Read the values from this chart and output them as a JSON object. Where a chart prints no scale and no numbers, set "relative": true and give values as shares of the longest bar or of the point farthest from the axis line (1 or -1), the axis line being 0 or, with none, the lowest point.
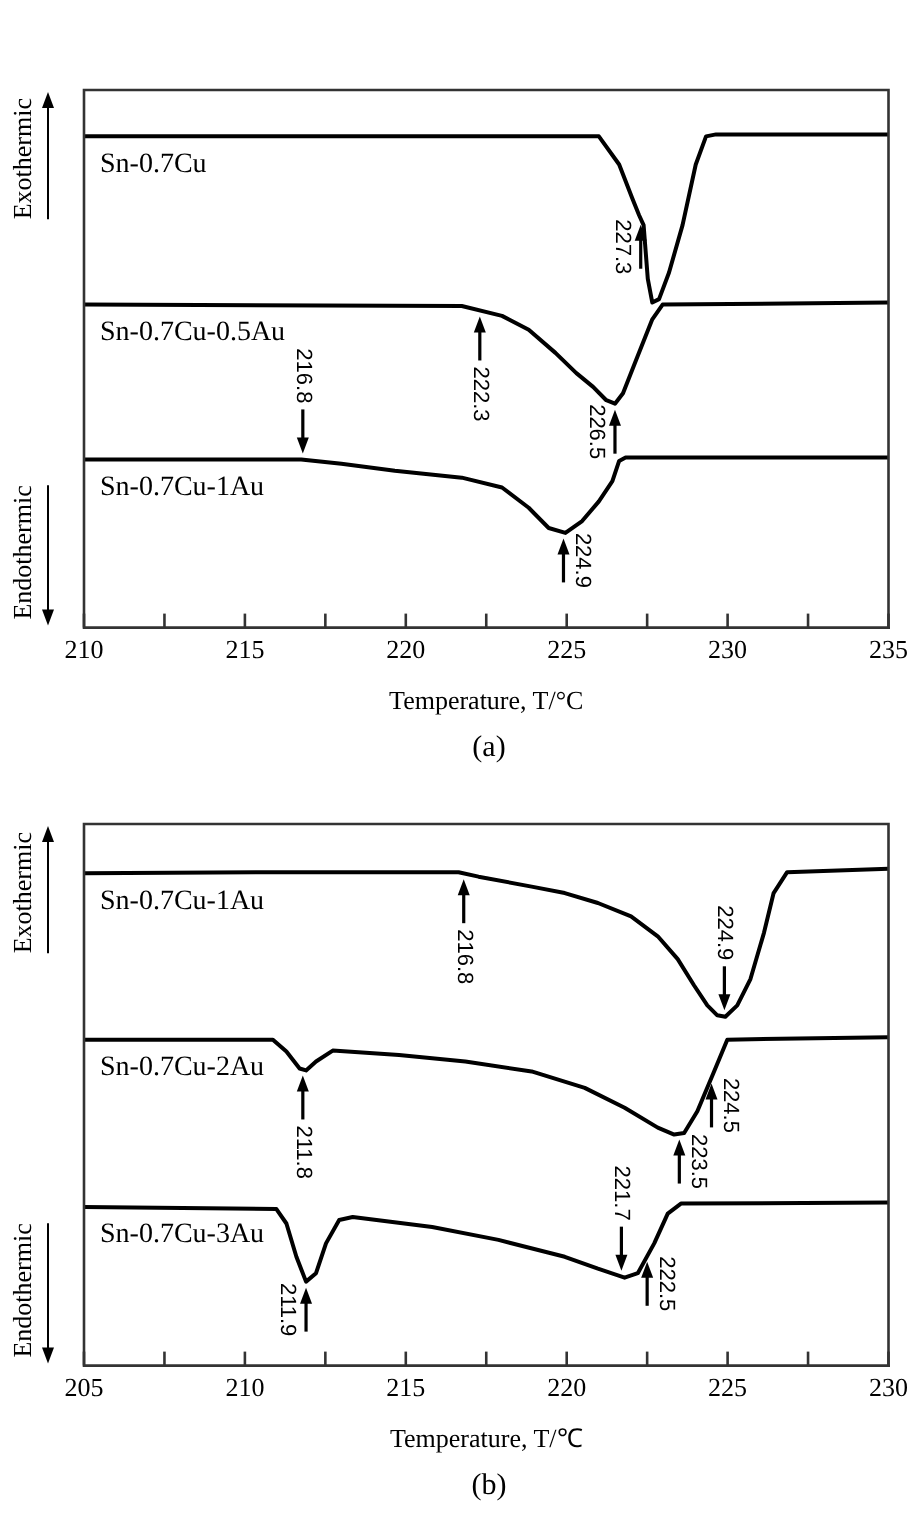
{
  "chart_data": [
    {
      "type": "line",
      "relative": true,
      "xlabel": "Temperature, T/°C",
      "subtitle": "(a)",
      "xlim": [
        210,
        235
      ],
      "xticks": [
        210,
        {
          "value": 212.5,
          "label": null
        },
        215,
        {
          "value": 217.5,
          "label": null
        },
        220,
        {
          "value": 222.5,
          "label": null
        },
        225,
        {
          "value": 227.5,
          "label": null
        },
        230,
        {
          "value": 232.5,
          "label": null
        },
        235
      ],
      "annotations": [
        "Exothermic",
        "Endothermic",
        {
          "text": "227.3",
          "x": 227.3,
          "y": 0.829
        },
        {
          "text": "222.3",
          "x": 222.3,
          "y": 0.643
        },
        {
          "text": "226.5",
          "x": 226.5,
          "y": 0.454
        },
        {
          "text": "216.8",
          "x": 216.8,
          "y": 0.341
        },
        {
          "text": "224.9",
          "x": 224.9,
          "y": 0.193
        }
      ],
      "series": [
        {
          "name": "Sn-0.7Cu",
          "color": "#000000",
          "x": [
            210,
            226.0,
            226.63,
            227.04,
            227.25,
            227.39,
            227.52,
            227.66,
            227.87,
            228.18,
            228.6,
            229.01,
            229.33,
            229.64,
            235
          ],
          "values": [
            0.996,
            0.996,
            0.939,
            0.87,
            0.836,
            0.816,
            0.707,
            0.659,
            0.666,
            0.72,
            0.816,
            0.939,
            0.996,
            1,
            1
          ]
        },
        {
          "name": "Sn-0.7Cu-0.5Au",
          "color": "#000000",
          "x": [
            210,
            221.74,
            222.99,
            223.82,
            224.65,
            225.3,
            225.82,
            226.23,
            226.5,
            226.75,
            227.16,
            227.66,
            227.98,
            235
          ],
          "values": [
            0.655,
            0.652,
            0.632,
            0.604,
            0.557,
            0.516,
            0.488,
            0.461,
            0.454,
            0.475,
            0.543,
            0.625,
            0.655,
            0.659
          ]
        },
        {
          "name": "Sn-0.7Cu-1Au",
          "color": "#000000",
          "x": [
            210,
            216.75,
            218.0,
            219.66,
            221.74,
            222.99,
            223.82,
            224.44,
            224.96,
            225.48,
            226.0,
            226.42,
            226.63,
            226.83,
            235
          ],
          "values": [
            0.341,
            0.341,
            0.332,
            0.318,
            0.304,
            0.284,
            0.243,
            0.202,
            0.192,
            0.216,
            0.256,
            0.297,
            0.338,
            0.345,
            0.345
          ]
        }
      ]
    },
    {
      "type": "line",
      "relative": true,
      "xlabel": "Temperature, T/℃",
      "subtitle": "(b)",
      "xlim": [
        205,
        230
      ],
      "xticks": [
        205,
        {
          "value": 207.5,
          "label": null
        },
        210,
        {
          "value": 212.5,
          "label": null
        },
        215,
        {
          "value": 217.5,
          "label": null
        },
        220,
        {
          "value": 222.5,
          "label": null
        },
        225,
        {
          "value": 227.5,
          "label": null
        },
        230
      ],
      "annotations": [
        "Exothermic",
        "Endothermic",
        {
          "text": "216.8",
          "x": 216.8,
          "y": 0.991
        },
        {
          "text": "224.9",
          "x": 224.9,
          "y": 0.703
        },
        {
          "text": "211.8",
          "x": 211.8,
          "y": 0.596
        },
        {
          "text": "224.5",
          "x": 224.5,
          "y": 0.58
        },
        {
          "text": "223.5",
          "x": 223.5,
          "y": 0.467
        },
        {
          "text": "211.9",
          "x": 211.9,
          "y": 0.169
        },
        {
          "text": "221.7",
          "x": 221.7,
          "y": 0.179
        },
        {
          "text": "222.5",
          "x": 222.5,
          "y": 0.221
        }
      ],
      "series": [
        {
          "name": "Sn-0.7Cu-1Au",
          "color": "#000000",
          "x": [
            205,
            210.67,
            216.64,
            217.26,
            218.91,
            219.94,
            220.97,
            222.0,
            222.83,
            223.45,
            223.96,
            224.37,
            224.68,
            224.93,
            225.3,
            225.71,
            226.13,
            226.43,
            226.85,
            230
          ],
          "values": [
            0.991,
            0.993,
            0.993,
            0.984,
            0.964,
            0.951,
            0.931,
            0.904,
            0.864,
            0.818,
            0.765,
            0.725,
            0.705,
            0.702,
            0.725,
            0.778,
            0.871,
            0.951,
            0.993,
            1
          ]
        },
        {
          "name": "Sn-0.7Cu-2Au",
          "color": "#000000",
          "x": [
            205,
            210.87,
            211.29,
            211.7,
            211.9,
            212.21,
            212.73,
            214.79,
            216.85,
            218.91,
            220.56,
            221.8,
            222.83,
            223.34,
            223.65,
            224.06,
            224.58,
            224.99,
            230
          ],
          "values": [
            0.656,
            0.656,
            0.632,
            0.598,
            0.594,
            0.612,
            0.634,
            0.625,
            0.612,
            0.592,
            0.559,
            0.519,
            0.479,
            0.465,
            0.468,
            0.512,
            0.592,
            0.656,
            0.661
          ]
        },
        {
          "name": "Sn-0.7Cu-3Au",
          "color": "#000000",
          "x": [
            205,
            210.98,
            211.29,
            211.6,
            211.9,
            212.21,
            212.52,
            212.93,
            213.35,
            215.82,
            217.88,
            219.94,
            220.97,
            221.8,
            222.21,
            222.72,
            223.14,
            223.55,
            230
          ],
          "values": [
            0.319,
            0.315,
            0.286,
            0.219,
            0.169,
            0.186,
            0.246,
            0.293,
            0.299,
            0.279,
            0.253,
            0.219,
            0.195,
            0.177,
            0.186,
            0.246,
            0.306,
            0.326,
            0.328
          ]
        }
      ]
    }
  ]
}
